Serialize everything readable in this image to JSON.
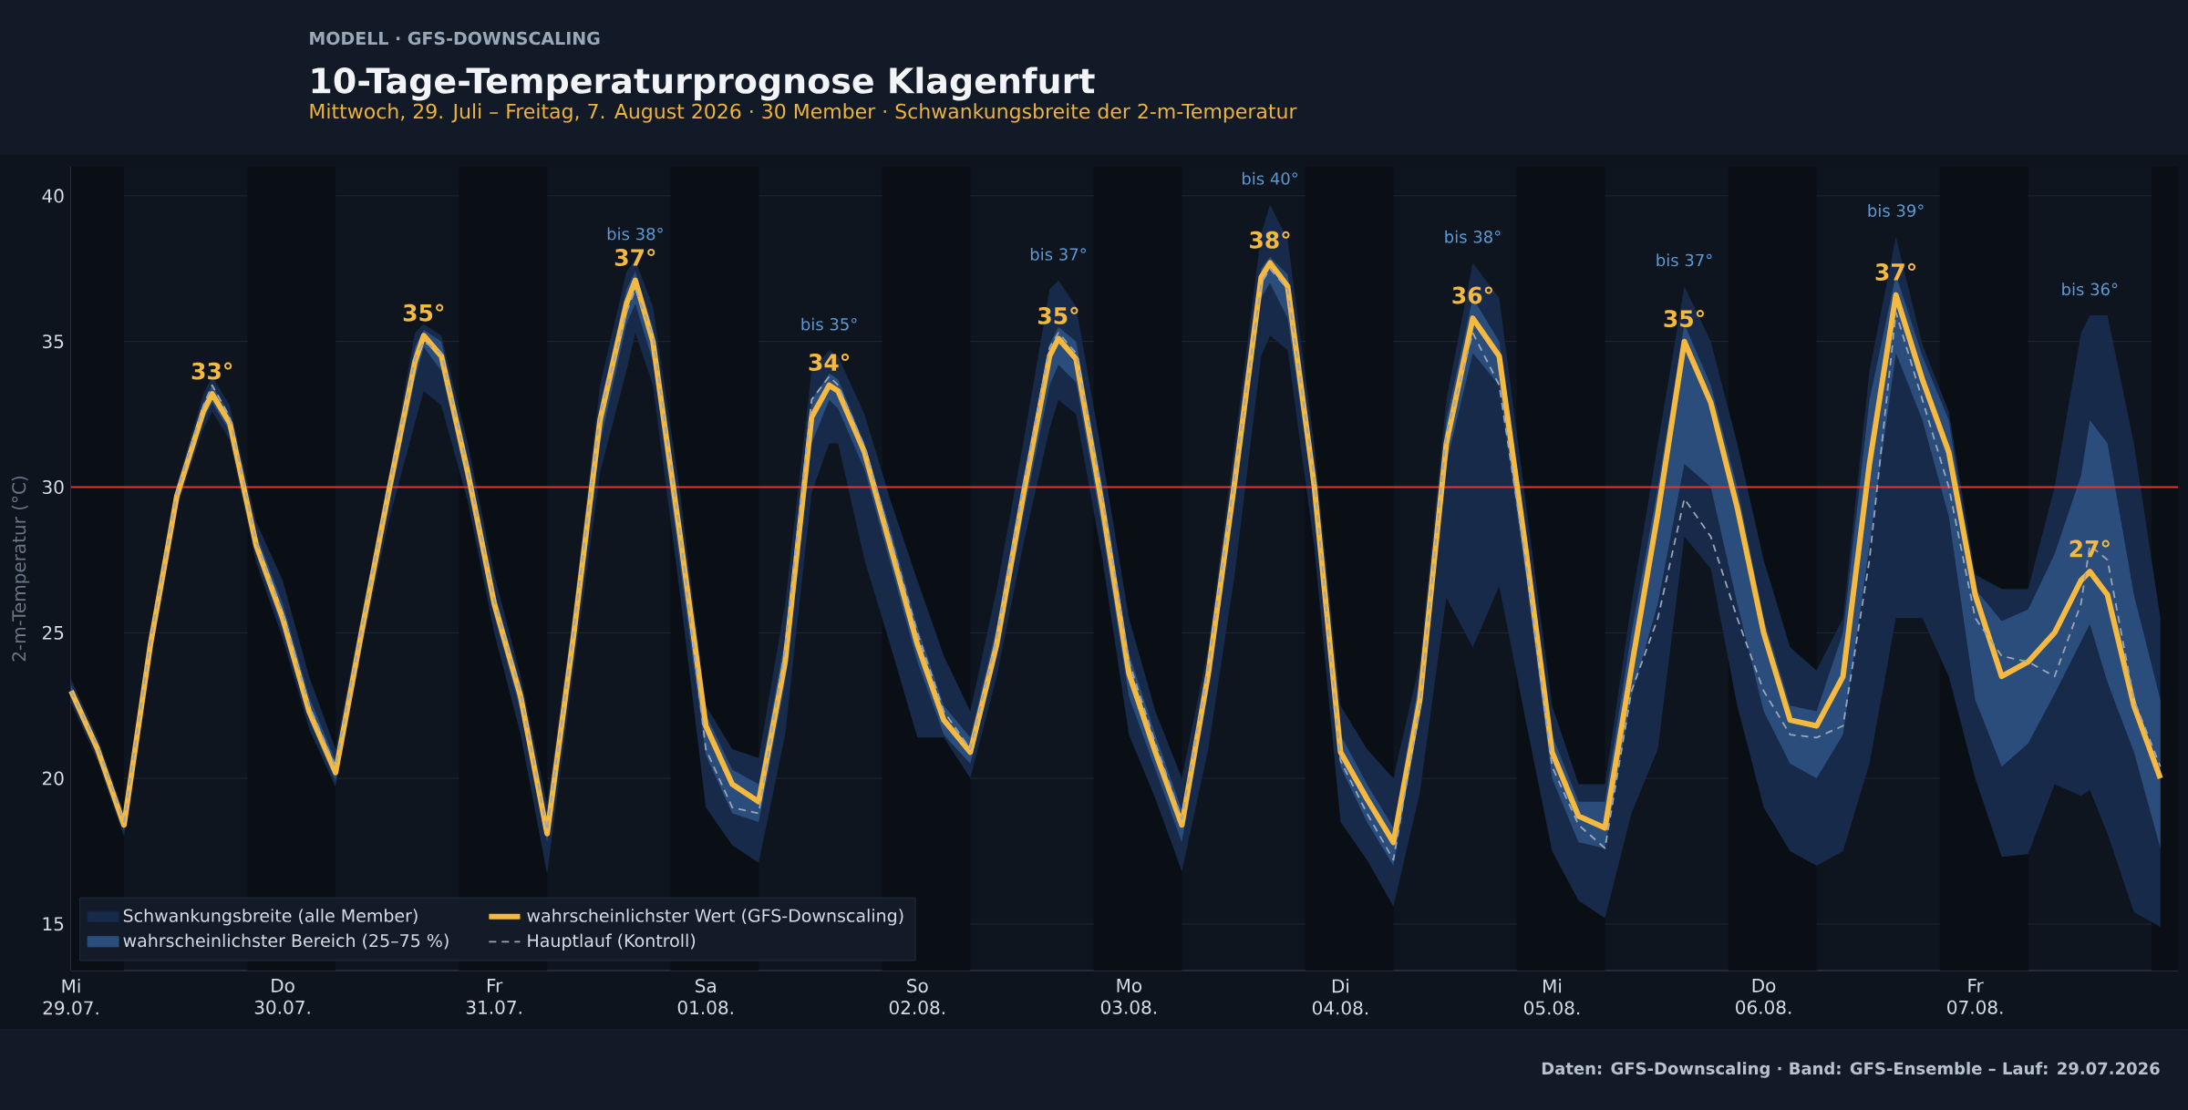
{
  "chart_data": {
    "type": "line",
    "title": "10-Tage-Temperaturprognose Klagenfurt",
    "subtitle": "Mittwoch, 29. Juli – Freitag, 7. August 2026 · 30 Member · Schwankungsbreite der 2-m-Temperatur",
    "ylabel": "2-m-Temperatur (°C)",
    "x": [
      "2026-07-29T00:00",
      "2026-07-29T03:00",
      "2026-07-29T06:00",
      "2026-07-29T09:00",
      "2026-07-29T12:00",
      "2026-07-29T15:00",
      "2026-07-29T16:00",
      "2026-07-29T18:00",
      "2026-07-29T21:00",
      "2026-07-30T00:00",
      "2026-07-30T03:00",
      "2026-07-30T06:00",
      "2026-07-30T09:00",
      "2026-07-30T12:00",
      "2026-07-30T15:00",
      "2026-07-30T16:00",
      "2026-07-30T18:00",
      "2026-07-30T21:00",
      "2026-07-31T00:00",
      "2026-07-31T03:00",
      "2026-07-31T06:00",
      "2026-07-31T09:00",
      "2026-07-31T12:00",
      "2026-07-31T15:00",
      "2026-07-31T16:00",
      "2026-07-31T18:00",
      "2026-07-31T21:00",
      "2026-08-01T00:00",
      "2026-08-01T03:00",
      "2026-08-01T06:00",
      "2026-08-01T09:00",
      "2026-08-01T12:00",
      "2026-08-01T14:00",
      "2026-08-01T15:00",
      "2026-08-01T18:00",
      "2026-08-01T21:00",
      "2026-08-02T00:00",
      "2026-08-02T03:00",
      "2026-08-02T06:00",
      "2026-08-02T09:00",
      "2026-08-02T12:00",
      "2026-08-02T15:00",
      "2026-08-02T16:00",
      "2026-08-02T18:00",
      "2026-08-02T21:00",
      "2026-08-03T00:00",
      "2026-08-03T03:00",
      "2026-08-03T06:00",
      "2026-08-03T09:00",
      "2026-08-03T12:00",
      "2026-08-03T15:00",
      "2026-08-03T16:00",
      "2026-08-03T18:00",
      "2026-08-03T21:00",
      "2026-08-04T00:00",
      "2026-08-04T03:00",
      "2026-08-04T06:00",
      "2026-08-04T09:00",
      "2026-08-04T12:00",
      "2026-08-04T15:00",
      "2026-08-04T18:00",
      "2026-08-04T21:00",
      "2026-08-05T00:00",
      "2026-08-05T03:00",
      "2026-08-05T06:00",
      "2026-08-05T09:00",
      "2026-08-05T12:00",
      "2026-08-05T15:00",
      "2026-08-05T18:00",
      "2026-08-05T21:00",
      "2026-08-06T00:00",
      "2026-08-06T03:00",
      "2026-08-06T06:00",
      "2026-08-06T09:00",
      "2026-08-06T12:00",
      "2026-08-06T15:00",
      "2026-08-06T18:00",
      "2026-08-06T21:00",
      "2026-08-07T00:00",
      "2026-08-07T03:00",
      "2026-08-07T06:00",
      "2026-08-07T09:00",
      "2026-08-07T12:00",
      "2026-08-07T13:00",
      "2026-08-07T15:00",
      "2026-08-07T18:00",
      "2026-08-07T21:00"
    ],
    "xlim": [
      "2026-07-29T00:00",
      "2026-08-07T23:00"
    ],
    "xticks": [
      {
        "value": "2026-07-29",
        "label": "Mi 29.07."
      },
      {
        "value": "2026-07-30",
        "label": "Do 30.07."
      },
      {
        "value": "2026-07-31",
        "label": "Fr 31.07."
      },
      {
        "value": "2026-08-01",
        "label": "Sa 01.08."
      },
      {
        "value": "2026-08-02",
        "label": "So 02.08."
      },
      {
        "value": "2026-08-03",
        "label": "Mo 03.08."
      },
      {
        "value": "2026-08-04",
        "label": "Di 04.08."
      },
      {
        "value": "2026-08-05",
        "label": "Mi 05.08."
      },
      {
        "value": "2026-08-06",
        "label": "Do 06.08."
      },
      {
        "value": "2026-08-07",
        "label": "Fr 07.08."
      }
    ],
    "ylim": [
      13.4,
      41
    ],
    "yticks": [
      15,
      20,
      25,
      30,
      35,
      40
    ],
    "grid": true,
    "legend": "bottom left",
    "series": [
      {
        "name": "Schwankungsbreite (alle Member)",
        "type": "line",
        "color": "#172a4a",
        "values": [
          null,
          null,
          null,
          null,
          null,
          null,
          null,
          null,
          null,
          null,
          null,
          null,
          null,
          null,
          null,
          null,
          null,
          null,
          null,
          null,
          null,
          null,
          null,
          null,
          null,
          null,
          null,
          null,
          null,
          null,
          null,
          null,
          null,
          null,
          null,
          null,
          null,
          null,
          null,
          null,
          null,
          null,
          null,
          null,
          null,
          null,
          null,
          null,
          null,
          null,
          null,
          null,
          null,
          null,
          null,
          null,
          null,
          null,
          null,
          null,
          null,
          null,
          null,
          null,
          null,
          null,
          null,
          null,
          null,
          null,
          null,
          null,
          null,
          null,
          null,
          null,
          null,
          null,
          null,
          null,
          null,
          null,
          null,
          null,
          null,
          null,
          null
        ],
        "lower": [
          22.6,
          20.6,
          18.0,
          24.2,
          29.3,
          32.0,
          32.6,
          31.6,
          27.4,
          24.8,
          21.7,
          19.7,
          24.5,
          28.8,
          32.2,
          33.3,
          32.8,
          29.5,
          25.0,
          21.5,
          16.7,
          23.7,
          30.5,
          34.0,
          35.3,
          33.5,
          26.5,
          19.0,
          17.7,
          17.1,
          21.5,
          29.8,
          31.5,
          31.5,
          27.5,
          24.5,
          21.4,
          21.4,
          20.0,
          23.5,
          28.0,
          32.0,
          33.0,
          32.5,
          27.5,
          21.5,
          19.3,
          16.8,
          21.0,
          27.0,
          34.5,
          35.2,
          34.7,
          28.0,
          18.5,
          17.2,
          15.6,
          19.5,
          26.2,
          24.5,
          26.6,
          22.0,
          17.5,
          15.8,
          15.2,
          18.8,
          21.0,
          28.3,
          27.2,
          22.5,
          19.0,
          17.5,
          17.0,
          17.5,
          20.5,
          25.5,
          25.5,
          23.5,
          20.0,
          17.3,
          17.4,
          19.8,
          19.4,
          19.6,
          18.1,
          15.4,
          14.9
        ],
        "upper": [
          23.4,
          21.4,
          18.8,
          25.0,
          30.1,
          33.2,
          33.8,
          32.8,
          28.8,
          26.8,
          23.5,
          21.0,
          25.7,
          30.3,
          35.3,
          35.6,
          35.2,
          31.5,
          27.0,
          23.5,
          19.1,
          25.8,
          33.5,
          37.4,
          37.8,
          36.2,
          30.0,
          22.5,
          21.0,
          20.7,
          26.0,
          34.0,
          34.7,
          34.5,
          32.5,
          29.5,
          26.8,
          24.2,
          22.3,
          26.5,
          31.5,
          36.8,
          37.1,
          36.2,
          31.0,
          25.5,
          22.3,
          20.0,
          24.5,
          31.5,
          38.7,
          39.7,
          38.5,
          31.5,
          22.5,
          21.0,
          20.0,
          24.0,
          33.0,
          37.7,
          36.5,
          29.5,
          22.5,
          19.8,
          19.8,
          26.0,
          31.5,
          36.9,
          35.0,
          31.5,
          27.5,
          24.5,
          23.7,
          25.5,
          34.0,
          38.6,
          34.9,
          32.6,
          27.0,
          26.5,
          26.5,
          30.0,
          35.3,
          35.9,
          35.9,
          31.5,
          25.5
        ]
      },
      {
        "name": "wahrscheinlichster Bereich (25–75 %)",
        "type": "line",
        "color": "#2a4d7c",
        "values": [
          null,
          null,
          null,
          null,
          null,
          null,
          null,
          null,
          null,
          null,
          null,
          null,
          null,
          null,
          null,
          null,
          null,
          null,
          null,
          null,
          null,
          null,
          null,
          null,
          null,
          null,
          null,
          null,
          null,
          null,
          null,
          null,
          null,
          null,
          null,
          null,
          null,
          null,
          null,
          null,
          null,
          null,
          null,
          null,
          null,
          null,
          null,
          null,
          null,
          null,
          null,
          null,
          null,
          null,
          null,
          null,
          null,
          null,
          null,
          null,
          null,
          null,
          null,
          null,
          null,
          null,
          null,
          null,
          null,
          null,
          null,
          null,
          null,
          null,
          null,
          null,
          null,
          null,
          null,
          null,
          null,
          null,
          null,
          null,
          null,
          null,
          null
        ],
        "lower": [
          22.8,
          20.8,
          18.2,
          24.4,
          29.5,
          32.3,
          32.9,
          31.9,
          27.7,
          25.1,
          22.0,
          19.9,
          24.8,
          29.3,
          33.7,
          34.8,
          34.0,
          30.0,
          25.6,
          22.3,
          17.8,
          24.3,
          31.5,
          35.6,
          36.3,
          34.3,
          27.5,
          20.8,
          18.8,
          18.5,
          23.3,
          31.5,
          33.0,
          32.7,
          30.6,
          27.3,
          24.0,
          21.5,
          20.5,
          24.2,
          29.0,
          33.5,
          34.2,
          33.6,
          28.5,
          22.8,
          20.3,
          17.8,
          23.0,
          29.5,
          36.5,
          37.0,
          35.8,
          29.5,
          20.4,
          18.5,
          17.0,
          22.2,
          30.8,
          34.6,
          33.5,
          27.0,
          20.0,
          17.8,
          17.6,
          22.8,
          26.0,
          30.8,
          30.0,
          26.0,
          22.3,
          20.5,
          20.0,
          21.5,
          28.0,
          34.6,
          32.3,
          29.0,
          22.7,
          20.4,
          21.2,
          22.9,
          24.7,
          25.3,
          23.3,
          20.9,
          17.6
        ],
        "upper": [
          23.2,
          21.2,
          18.6,
          24.8,
          29.9,
          32.9,
          33.5,
          32.5,
          28.4,
          26.0,
          22.8,
          20.6,
          25.4,
          30.0,
          34.8,
          35.4,
          35.0,
          31.0,
          26.4,
          23.2,
          18.4,
          25.3,
          32.8,
          36.8,
          37.4,
          35.5,
          29.0,
          22.2,
          20.3,
          19.8,
          24.8,
          33.0,
          33.9,
          33.7,
          31.5,
          28.5,
          25.2,
          22.5,
          21.4,
          25.2,
          30.3,
          34.9,
          35.5,
          35.0,
          30.0,
          24.3,
          21.5,
          18.9,
          24.0,
          30.7,
          37.5,
          37.9,
          37.3,
          30.6,
          21.5,
          19.8,
          18.3,
          23.5,
          32.3,
          36.5,
          35.0,
          28.5,
          21.5,
          19.2,
          19.2,
          25.0,
          30.0,
          35.6,
          33.5,
          30.0,
          25.5,
          22.5,
          22.3,
          25.0,
          33.0,
          37.3,
          34.5,
          32.3,
          26.5,
          25.4,
          25.8,
          27.7,
          30.4,
          32.3,
          31.5,
          26.3,
          22.7
        ]
      },
      {
        "name": "wahrscheinlichster Wert (GFS-Downscaling)",
        "type": "line",
        "color": "#f5b93f",
        "line_style": "solid",
        "values": [
          23.0,
          21.0,
          18.4,
          24.6,
          29.7,
          32.6,
          33.2,
          32.2,
          28.0,
          25.5,
          22.3,
          20.2,
          25.1,
          29.8,
          34.3,
          35.2,
          34.5,
          30.5,
          26.0,
          22.8,
          18.1,
          24.9,
          32.3,
          36.3,
          37.1,
          35.0,
          28.5,
          21.8,
          19.8,
          19.2,
          24.0,
          32.4,
          33.5,
          33.3,
          31.2,
          27.9,
          24.6,
          22.0,
          20.9,
          24.6,
          29.7,
          34.5,
          35.1,
          34.4,
          29.3,
          23.6,
          20.9,
          18.4,
          23.6,
          30.2,
          37.2,
          37.7,
          36.9,
          30.1,
          20.9,
          19.3,
          17.8,
          22.7,
          31.5,
          35.8,
          34.5,
          27.9,
          20.9,
          18.7,
          18.3,
          23.8,
          29.1,
          35.0,
          32.9,
          29.3,
          25.0,
          22.0,
          21.8,
          23.5,
          30.8,
          36.6,
          33.7,
          31.2,
          26.3,
          23.5,
          24.0,
          25.0,
          26.8,
          27.1,
          26.3,
          22.5,
          20.0
        ]
      },
      {
        "name": "Hauptlauf (Kontroll)",
        "type": "line",
        "color": "#9aa6b6",
        "line_style": "dashed",
        "values": [
          23.0,
          21.1,
          18.5,
          24.7,
          29.8,
          32.8,
          33.5,
          32.4,
          28.1,
          25.7,
          22.5,
          20.4,
          25.2,
          29.9,
          34.4,
          35.0,
          34.6,
          30.6,
          26.1,
          22.9,
          18.2,
          25.0,
          32.5,
          36.0,
          36.8,
          35.2,
          28.6,
          21.0,
          19.0,
          18.8,
          24.5,
          33.0,
          33.8,
          33.5,
          31.4,
          28.2,
          25.0,
          22.3,
          21.0,
          24.8,
          30.0,
          34.8,
          35.3,
          34.6,
          29.6,
          24.0,
          21.2,
          18.6,
          23.8,
          30.4,
          37.0,
          37.5,
          36.8,
          30.3,
          20.6,
          18.8,
          17.2,
          22.5,
          31.8,
          35.3,
          33.5,
          27.5,
          20.4,
          18.4,
          17.6,
          23.0,
          25.5,
          29.6,
          28.3,
          25.5,
          23.0,
          21.5,
          21.4,
          21.8,
          27.5,
          36.0,
          33.0,
          30.0,
          25.5,
          24.2,
          24.0,
          23.5,
          26.0,
          28.0,
          27.5,
          22.7,
          20.4
        ]
      }
    ],
    "ref_lines": [
      {
        "axis": "y",
        "value": 30,
        "color": "#e0372f"
      }
    ],
    "bands": [
      {
        "axis": "x",
        "from": "2026-07-29T00:00",
        "to": "2026-07-29T06:00",
        "color": "#0a0f16"
      },
      {
        "axis": "x",
        "from": "2026-07-29T20:00",
        "to": "2026-07-30T06:00",
        "color": "#0a0f16"
      },
      {
        "axis": "x",
        "from": "2026-07-30T20:00",
        "to": "2026-07-31T06:00",
        "color": "#0a0f16"
      },
      {
        "axis": "x",
        "from": "2026-07-31T20:00",
        "to": "2026-08-01T06:00",
        "color": "#0a0f16"
      },
      {
        "axis": "x",
        "from": "2026-08-01T20:00",
        "to": "2026-08-02T06:00",
        "color": "#0a0f16"
      },
      {
        "axis": "x",
        "from": "2026-08-02T20:00",
        "to": "2026-08-03T06:00",
        "color": "#0a0f16"
      },
      {
        "axis": "x",
        "from": "2026-08-03T20:00",
        "to": "2026-08-04T06:00",
        "color": "#0a0f16"
      },
      {
        "axis": "x",
        "from": "2026-08-04T20:00",
        "to": "2026-08-05T06:00",
        "color": "#0a0f16"
      },
      {
        "axis": "x",
        "from": "2026-08-05T20:00",
        "to": "2026-08-06T06:00",
        "color": "#0a0f16"
      },
      {
        "axis": "x",
        "from": "2026-08-06T20:00",
        "to": "2026-08-07T06:00",
        "color": "#0a0f16"
      },
      {
        "axis": "x",
        "from": "2026-08-07T20:00",
        "to": "2026-08-07T23:00",
        "color": "#0a0f16"
      }
    ],
    "annotations": [
      "MODELL · GFS-DOWNSCALING",
      {
        "text": "33°",
        "x": "2026-07-29T16:00",
        "y": 33.2
      },
      {
        "text": "35°",
        "x": "2026-07-30T16:00",
        "y": 35.2
      },
      {
        "text": "37°",
        "x": "2026-07-31T16:00",
        "y": 37.1
      },
      {
        "text": "bis 38°",
        "x": "2026-07-31T16:00",
        "y": 37.8
      },
      {
        "text": "34°",
        "x": "2026-08-01T14:00",
        "y": 33.5
      },
      {
        "text": "bis 35°",
        "x": "2026-08-01T14:00",
        "y": 34.7
      },
      {
        "text": "35°",
        "x": "2026-08-02T16:00",
        "y": 35.1
      },
      {
        "text": "bis 37°",
        "x": "2026-08-02T16:00",
        "y": 37.1
      },
      {
        "text": "38°",
        "x": "2026-08-03T16:00",
        "y": 37.7
      },
      {
        "text": "bis 40°",
        "x": "2026-08-03T16:00",
        "y": 39.7
      },
      {
        "text": "36°",
        "x": "2026-08-04T15:00",
        "y": 35.8
      },
      {
        "text": "bis 38°",
        "x": "2026-08-04T15:00",
        "y": 37.7
      },
      {
        "text": "35°",
        "x": "2026-08-05T15:00",
        "y": 35.0
      },
      {
        "text": "bis 37°",
        "x": "2026-08-05T15:00",
        "y": 36.9
      },
      {
        "text": "37°",
        "x": "2026-08-06T15:00",
        "y": 36.6
      },
      {
        "text": "bis 39°",
        "x": "2026-08-06T15:00",
        "y": 38.6
      },
      {
        "text": "27°",
        "x": "2026-08-07T13:00",
        "y": 27.1
      },
      {
        "text": "bis 36°",
        "x": "2026-08-07T13:00",
        "y": 35.9
      },
      "Daten: GFS-Downscaling · Band: GFS-Ensemble – Lauf: 29.07.2026"
    ]
  }
}
